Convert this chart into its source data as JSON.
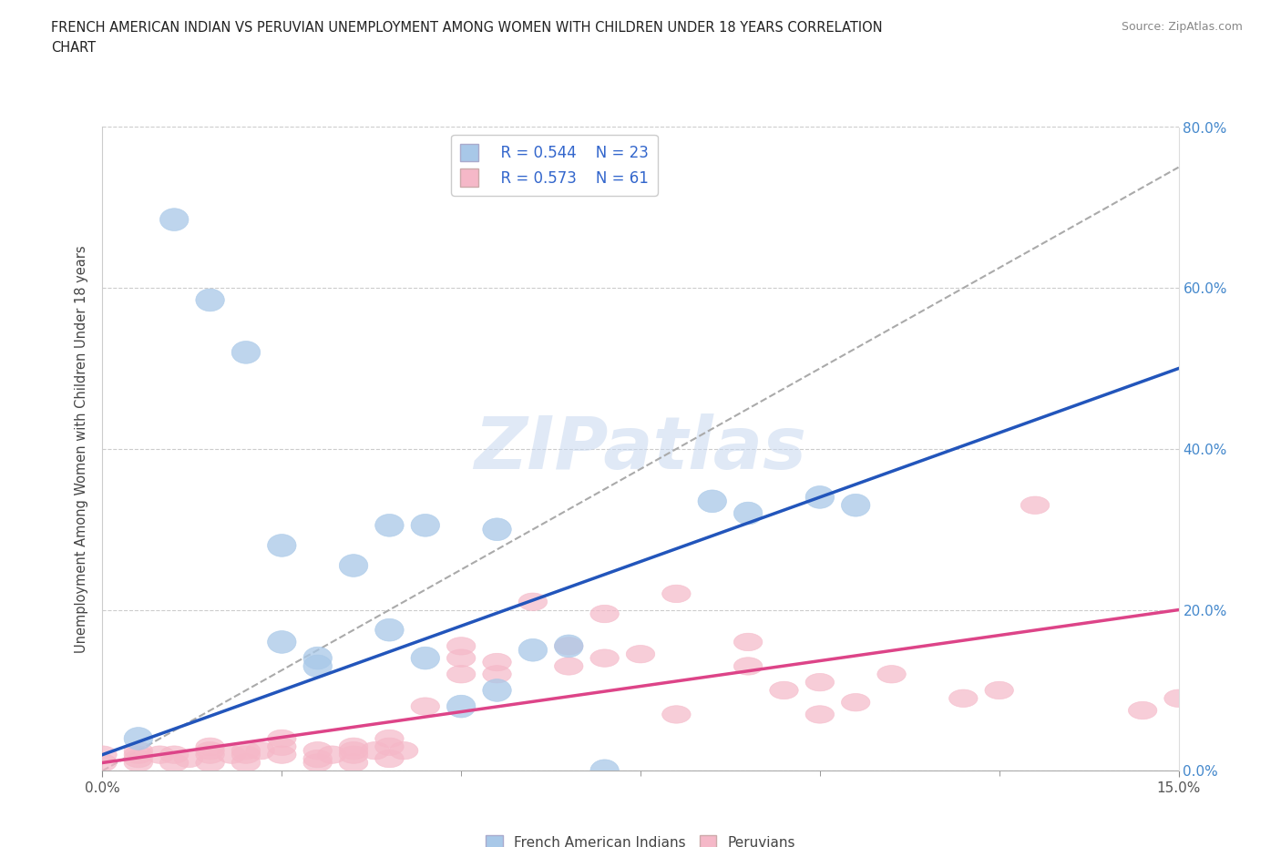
{
  "title_line1": "FRENCH AMERICAN INDIAN VS PERUVIAN UNEMPLOYMENT AMONG WOMEN WITH CHILDREN UNDER 18 YEARS CORRELATION",
  "title_line2": "CHART",
  "source": "Source: ZipAtlas.com",
  "ylabel": "Unemployment Among Women with Children Under 18 years",
  "watermark": "ZIPatlas",
  "xmin": 0.0,
  "xmax": 0.15,
  "ymin": 0.0,
  "ymax": 0.8,
  "yticks": [
    0.0,
    0.2,
    0.4,
    0.6,
    0.8
  ],
  "ytick_labels_right": [
    "0.0%",
    "20.0%",
    "40.0%",
    "60.0%",
    "80.0%"
  ],
  "xticks": [
    0.0,
    0.15
  ],
  "xtick_labels": [
    "0.0%",
    "15.0%"
  ],
  "legend_r1": "R = 0.544",
  "legend_n1": "N = 23",
  "legend_r2": "R = 0.573",
  "legend_n2": "N = 61",
  "color_blue_scatter": "#a8c8e8",
  "color_pink_scatter": "#f5b8c8",
  "color_blue_line": "#2255bb",
  "color_pink_line": "#dd4488",
  "color_dashed": "#aaaaaa",
  "blue_line_y0": 0.02,
  "blue_line_y1": 0.5,
  "pink_line_y0": 0.01,
  "pink_line_y1": 0.2,
  "dash_line_y0": 0.0,
  "dash_line_y1": 0.75,
  "french_x": [
    0.005,
    0.01,
    0.015,
    0.02,
    0.025,
    0.025,
    0.03,
    0.03,
    0.035,
    0.04,
    0.04,
    0.045,
    0.045,
    0.05,
    0.055,
    0.055,
    0.06,
    0.065,
    0.07,
    0.085,
    0.09,
    0.1,
    0.105
  ],
  "french_y": [
    0.04,
    0.685,
    0.585,
    0.52,
    0.28,
    0.16,
    0.14,
    0.13,
    0.255,
    0.305,
    0.175,
    0.14,
    0.305,
    0.08,
    0.1,
    0.3,
    0.15,
    0.155,
    0.0,
    0.335,
    0.32,
    0.34,
    0.33
  ],
  "peruvian_x": [
    0.0,
    0.0,
    0.005,
    0.005,
    0.005,
    0.005,
    0.008,
    0.01,
    0.01,
    0.012,
    0.015,
    0.015,
    0.015,
    0.015,
    0.018,
    0.02,
    0.02,
    0.02,
    0.022,
    0.025,
    0.025,
    0.025,
    0.03,
    0.03,
    0.03,
    0.032,
    0.035,
    0.035,
    0.035,
    0.035,
    0.038,
    0.04,
    0.04,
    0.04,
    0.042,
    0.045,
    0.05,
    0.05,
    0.05,
    0.055,
    0.055,
    0.06,
    0.065,
    0.065,
    0.07,
    0.07,
    0.075,
    0.08,
    0.08,
    0.09,
    0.09,
    0.095,
    0.1,
    0.1,
    0.105,
    0.11,
    0.12,
    0.125,
    0.13,
    0.145,
    0.15
  ],
  "peruvian_y": [
    0.01,
    0.02,
    0.01,
    0.015,
    0.02,
    0.025,
    0.02,
    0.01,
    0.02,
    0.015,
    0.01,
    0.02,
    0.025,
    0.03,
    0.02,
    0.01,
    0.02,
    0.025,
    0.025,
    0.02,
    0.03,
    0.04,
    0.01,
    0.015,
    0.025,
    0.02,
    0.01,
    0.02,
    0.025,
    0.03,
    0.025,
    0.015,
    0.03,
    0.04,
    0.025,
    0.08,
    0.12,
    0.14,
    0.155,
    0.12,
    0.135,
    0.21,
    0.13,
    0.155,
    0.14,
    0.195,
    0.145,
    0.07,
    0.22,
    0.13,
    0.16,
    0.1,
    0.07,
    0.11,
    0.085,
    0.12,
    0.09,
    0.1,
    0.33,
    0.075,
    0.09
  ]
}
